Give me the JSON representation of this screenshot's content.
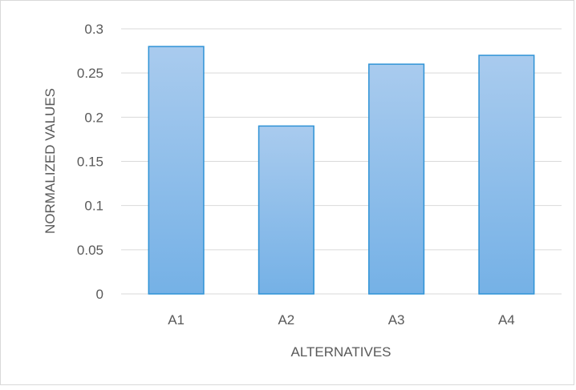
{
  "chart_data": {
    "type": "bar",
    "title": "",
    "xlabel": "ALTERNATIVES",
    "ylabel": "NORMALIZED VALUES",
    "categories": [
      "A1",
      "A2",
      "A3",
      "A4"
    ],
    "series": [
      {
        "values": [
          0.28,
          0.19,
          0.26,
          0.27
        ]
      }
    ],
    "ylim": [
      0,
      0.3
    ],
    "yticks": [
      0,
      0.05,
      0.1,
      0.15,
      0.2,
      0.25,
      0.3
    ],
    "ytick_labels": [
      "0",
      "0.05",
      "0.1",
      "0.15",
      "0.2",
      "0.25",
      "0.3"
    ],
    "grid": true,
    "legend": "none",
    "colors": {
      "bar_fill_top": "#a9cbee",
      "bar_fill_bottom": "#75b1e6",
      "bar_stroke": "#2f93d6",
      "gridline": "#d9d9d9",
      "text": "#595959"
    }
  }
}
